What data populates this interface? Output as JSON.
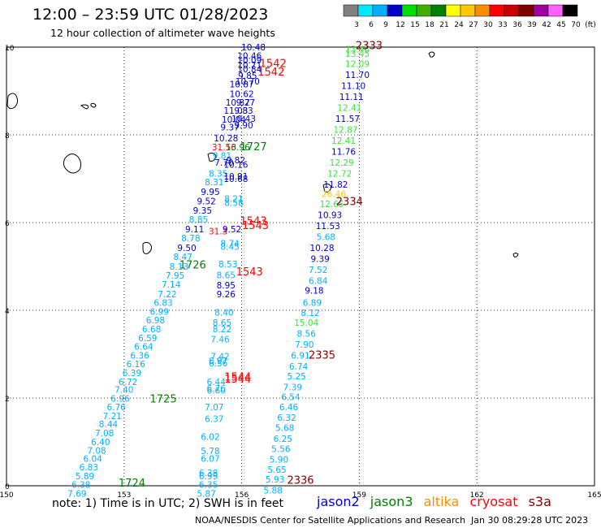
{
  "title": "12:00 – 23:59 UTC 01/28/2023",
  "subtitle": "12 hour collection of altimeter wave heights",
  "scale": {
    "labels": [
      "3",
      "6",
      "9",
      "12",
      "15",
      "18",
      "21",
      "24",
      "27",
      "30",
      "33",
      "36",
      "39",
      "42",
      "45",
      "70",
      "(ft)"
    ],
    "colors": [
      "#808080",
      "#00e8ff",
      "#00b0ff",
      "#0000c8",
      "#00e000",
      "#40b000",
      "#008000",
      "#ffff00",
      "#ffc800",
      "#ff8c00",
      "#ff0000",
      "#c80000",
      "#800000",
      "#a000a0",
      "#ff60ff",
      "#000000"
    ]
  },
  "axes": {
    "x_ticks": [
      "150",
      "153",
      "156",
      "159",
      "162",
      "165"
    ],
    "y_ticks": [
      "0",
      "2",
      "4",
      "6",
      "8",
      "10"
    ]
  },
  "satellites": [
    {
      "name": "jason2",
      "color": "#0000c8"
    },
    {
      "name": "jason3",
      "color": "#008000"
    },
    {
      "name": "altika",
      "color": "#ff8c00"
    },
    {
      "name": "cryosat",
      "color": "#ff0000"
    },
    {
      "name": "s3a",
      "color": "#800000"
    }
  ],
  "note": "note:  1) Time is in UTC;  2) SWH is in feet",
  "credit": "NOAA/NESDIS Center for Satellite Applications and Research",
  "timestamp": "Jan 30 08:29:28 UTC 2023",
  "time_labels": [
    {
      "text": "2333",
      "lon": 159.25,
      "lat": 9.95,
      "color": "#800000"
    },
    {
      "text": "1542",
      "lon": 156.8,
      "lat": 9.55,
      "color": "#ff0000"
    },
    {
      "text": "1542",
      "lon": 156.75,
      "lat": 9.35,
      "color": "#ff0000"
    },
    {
      "text": "1727",
      "lon": 156.3,
      "lat": 7.65,
      "color": "#008000"
    },
    {
      "text": "2334",
      "lon": 158.75,
      "lat": 6.4,
      "color": "#800000"
    },
    {
      "text": "1543",
      "lon": 156.3,
      "lat": 5.95,
      "color": "#ff0000"
    },
    {
      "text": "1543",
      "lon": 156.35,
      "lat": 5.85,
      "color": "#ff0000"
    },
    {
      "text": "1726",
      "lon": 154.75,
      "lat": 4.95,
      "color": "#008000"
    },
    {
      "text": "1543",
      "lon": 156.2,
      "lat": 4.8,
      "color": "#ff0000"
    },
    {
      "text": "2335",
      "lon": 158.05,
      "lat": 2.9,
      "color": "#800000"
    },
    {
      "text": "1544",
      "lon": 155.9,
      "lat": 2.4,
      "color": "#ff0000"
    },
    {
      "text": "1544",
      "lon": 155.9,
      "lat": 2.35,
      "color": "#ff0000"
    },
    {
      "text": "1725",
      "lon": 154.0,
      "lat": 1.9,
      "color": "#008000"
    },
    {
      "text": "2336",
      "lon": 157.5,
      "lat": 0.05,
      "color": "#800000"
    },
    {
      "text": "1724",
      "lon": 153.2,
      "lat": -0.02,
      "color": "#008000"
    }
  ],
  "wave_heights": [
    {
      "text": "10.48",
      "lon": 156.3,
      "lat": 9.93,
      "color": "#0000c8"
    },
    {
      "text": "10.46",
      "lon": 156.2,
      "lat": 9.73,
      "color": "#0000c8"
    },
    {
      "text": "10.09",
      "lon": 156.2,
      "lat": 9.63,
      "color": "#0000c8"
    },
    {
      "text": "10.71",
      "lon": 156.2,
      "lat": 9.52,
      "color": "#0000c8"
    },
    {
      "text": "10.84",
      "lon": 156.2,
      "lat": 9.43,
      "color": "#0000c8"
    },
    {
      "text": "9.85",
      "lon": 156.15,
      "lat": 9.28,
      "color": "#0000c8"
    },
    {
      "text": "10.70",
      "lon": 156.15,
      "lat": 9.15,
      "color": "#0000c8"
    },
    {
      "text": "10.87",
      "lon": 156.0,
      "lat": 9.08,
      "color": "#0000c8"
    },
    {
      "text": "10.62",
      "lon": 156.0,
      "lat": 8.86,
      "color": "#0000c8"
    },
    {
      "text": "10.87",
      "lon": 155.9,
      "lat": 8.67,
      "color": "#0000c8"
    },
    {
      "text": "9.27",
      "lon": 156.1,
      "lat": 8.67,
      "color": "#0000c8"
    },
    {
      "text": "11.03",
      "lon": 155.85,
      "lat": 8.48,
      "color": "#0000c8"
    },
    {
      "text": "9.83",
      "lon": 156.05,
      "lat": 8.48,
      "color": "#0000c8"
    },
    {
      "text": "10.04",
      "lon": 155.8,
      "lat": 8.28,
      "color": "#0000c8"
    },
    {
      "text": "10.43",
      "lon": 156.05,
      "lat": 8.3,
      "color": "#0000c8"
    },
    {
      "text": "9.90",
      "lon": 156.05,
      "lat": 8.15,
      "color": "#0000c8"
    },
    {
      "text": "9.37",
      "lon": 155.7,
      "lat": 8.1,
      "color": "#0000c8"
    },
    {
      "text": "10.28",
      "lon": 155.6,
      "lat": 7.85,
      "color": "#0000c8"
    },
    {
      "text": "31.56",
      "lon": 155.55,
      "lat": 7.65,
      "color": "#ff0000"
    },
    {
      "text": "13.96",
      "lon": 155.9,
      "lat": 7.65,
      "color": "#008000"
    },
    {
      "text": "9.81",
      "lon": 155.5,
      "lat": 7.45,
      "color": "#00b0ff"
    },
    {
      "text": "7.70",
      "lon": 155.55,
      "lat": 7.3,
      "color": "#0000c8"
    },
    {
      "text": "9.82",
      "lon": 155.85,
      "lat": 7.35,
      "color": "#0000c8"
    },
    {
      "text": "10.16",
      "lon": 155.85,
      "lat": 7.25,
      "color": "#0000c8"
    },
    {
      "text": "8.35",
      "lon": 155.4,
      "lat": 7.05,
      "color": "#00b0ff"
    },
    {
      "text": "10.91",
      "lon": 155.85,
      "lat": 6.98,
      "color": "#0000c8"
    },
    {
      "text": "10.68",
      "lon": 155.85,
      "lat": 6.93,
      "color": "#0000c8"
    },
    {
      "text": "8.31",
      "lon": 155.3,
      "lat": 6.85,
      "color": "#00b0ff"
    },
    {
      "text": "9.95",
      "lon": 155.2,
      "lat": 6.63,
      "color": "#0000c8"
    },
    {
      "text": "8.21",
      "lon": 155.8,
      "lat": 6.47,
      "color": "#00b0ff"
    },
    {
      "text": "8.58",
      "lon": 155.8,
      "lat": 6.38,
      "color": "#00b0ff"
    },
    {
      "text": "9.52",
      "lon": 155.1,
      "lat": 6.42,
      "color": "#0000c8"
    },
    {
      "text": "9.35",
      "lon": 155.0,
      "lat": 6.2,
      "color": "#0000c8"
    },
    {
      "text": "8.85",
      "lon": 154.9,
      "lat": 6.0,
      "color": "#00b0ff"
    },
    {
      "text": "9.11",
      "lon": 154.8,
      "lat": 5.78,
      "color": "#0000c8"
    },
    {
      "text": "31.3",
      "lon": 155.4,
      "lat": 5.73,
      "color": "#ff0000"
    },
    {
      "text": "9.52",
      "lon": 155.75,
      "lat": 5.78,
      "color": "#0000c8"
    },
    {
      "text": "8.78",
      "lon": 154.7,
      "lat": 5.57,
      "color": "#00b0ff"
    },
    {
      "text": "8.74",
      "lon": 155.7,
      "lat": 5.45,
      "color": "#00b0ff"
    },
    {
      "text": "8.45",
      "lon": 155.7,
      "lat": 5.38,
      "color": "#00b0ff"
    },
    {
      "text": "9.50",
      "lon": 154.6,
      "lat": 5.35,
      "color": "#0000c8"
    },
    {
      "text": "8.47",
      "lon": 154.5,
      "lat": 5.15,
      "color": "#00b0ff"
    },
    {
      "text": "8.13",
      "lon": 154.4,
      "lat": 4.93,
      "color": "#00b0ff"
    },
    {
      "text": "8.53",
      "lon": 155.65,
      "lat": 4.98,
      "color": "#00b0ff"
    },
    {
      "text": "7.95",
      "lon": 154.3,
      "lat": 4.72,
      "color": "#00b0ff"
    },
    {
      "text": "8.65",
      "lon": 155.6,
      "lat": 4.73,
      "color": "#00b0ff"
    },
    {
      "text": "7.14",
      "lon": 154.2,
      "lat": 4.52,
      "color": "#00b0ff"
    },
    {
      "text": "8.95",
      "lon": 155.6,
      "lat": 4.5,
      "color": "#0000c8"
    },
    {
      "text": "9.26",
      "lon": 155.6,
      "lat": 4.3,
      "color": "#0000c8"
    },
    {
      "text": "7.22",
      "lon": 154.1,
      "lat": 4.3,
      "color": "#00b0ff"
    },
    {
      "text": "6.83",
      "lon": 154.0,
      "lat": 4.1,
      "color": "#00b0ff"
    },
    {
      "text": "6.99",
      "lon": 153.9,
      "lat": 3.9,
      "color": "#00b0ff"
    },
    {
      "text": "8.40",
      "lon": 155.55,
      "lat": 3.88,
      "color": "#00b0ff"
    },
    {
      "text": "6.98",
      "lon": 153.8,
      "lat": 3.7,
      "color": "#00b0ff"
    },
    {
      "text": "8.65",
      "lon": 155.5,
      "lat": 3.65,
      "color": "#00b0ff"
    },
    {
      "text": "8.22",
      "lon": 155.5,
      "lat": 3.5,
      "color": "#00b0ff"
    },
    {
      "text": "6.68",
      "lon": 153.7,
      "lat": 3.5,
      "color": "#00b0ff"
    },
    {
      "text": "6.59",
      "lon": 153.6,
      "lat": 3.3,
      "color": "#00b0ff"
    },
    {
      "text": "7.46",
      "lon": 155.45,
      "lat": 3.27,
      "color": "#00b0ff"
    },
    {
      "text": "6.64",
      "lon": 153.5,
      "lat": 3.1,
      "color": "#00b0ff"
    },
    {
      "text": "7.42",
      "lon": 155.45,
      "lat": 2.88,
      "color": "#00b0ff"
    },
    {
      "text": "6.36",
      "lon": 153.4,
      "lat": 2.9,
      "color": "#00b0ff"
    },
    {
      "text": "6.97",
      "lon": 155.4,
      "lat": 2.78,
      "color": "#00b0ff"
    },
    {
      "text": "6.56",
      "lon": 155.4,
      "lat": 2.72,
      "color": "#00b0ff"
    },
    {
      "text": "6.16",
      "lon": 153.3,
      "lat": 2.7,
      "color": "#00b0ff"
    },
    {
      "text": "6.39",
      "lon": 153.2,
      "lat": 2.5,
      "color": "#00b0ff"
    },
    {
      "text": "6.72",
      "lon": 153.1,
      "lat": 2.3,
      "color": "#00b0ff"
    },
    {
      "text": "6.44",
      "lon": 155.35,
      "lat": 2.3,
      "color": "#00b0ff"
    },
    {
      "text": "7.40",
      "lon": 153.0,
      "lat": 2.12,
      "color": "#00b0ff"
    },
    {
      "text": "6.76",
      "lon": 155.35,
      "lat": 2.15,
      "color": "#00b0ff"
    },
    {
      "text": "6.60",
      "lon": 155.35,
      "lat": 2.1,
      "color": "#00b0ff"
    },
    {
      "text": "6.96",
      "lon": 152.9,
      "lat": 1.92,
      "color": "#00b0ff"
    },
    {
      "text": "6.76",
      "lon": 152.8,
      "lat": 1.72,
      "color": "#00b0ff"
    },
    {
      "text": "7.07",
      "lon": 155.3,
      "lat": 1.72,
      "color": "#00b0ff"
    },
    {
      "text": "7.21",
      "lon": 152.7,
      "lat": 1.52,
      "color": "#00b0ff"
    },
    {
      "text": "6.37",
      "lon": 155.3,
      "lat": 1.45,
      "color": "#00b0ff"
    },
    {
      "text": "8.44",
      "lon": 152.6,
      "lat": 1.33,
      "color": "#00b0ff"
    },
    {
      "text": "7.08",
      "lon": 152.5,
      "lat": 1.13,
      "color": "#00b0ff"
    },
    {
      "text": "6.02",
      "lon": 155.2,
      "lat": 1.05,
      "color": "#00b0ff"
    },
    {
      "text": "6.40",
      "lon": 152.4,
      "lat": 0.93,
      "color": "#00b0ff"
    },
    {
      "text": "7.08",
      "lon": 152.3,
      "lat": 0.73,
      "color": "#00b0ff"
    },
    {
      "text": "5.78",
      "lon": 155.2,
      "lat": 0.72,
      "color": "#00b0ff"
    },
    {
      "text": "6.04",
      "lon": 152.2,
      "lat": 0.55,
      "color": "#00b0ff"
    },
    {
      "text": "6.07",
      "lon": 155.2,
      "lat": 0.55,
      "color": "#00b0ff"
    },
    {
      "text": "6.83",
      "lon": 152.1,
      "lat": 0.35,
      "color": "#00b0ff"
    },
    {
      "text": "5.89",
      "lon": 152.0,
      "lat": 0.15,
      "color": "#00b0ff"
    },
    {
      "text": "6.38",
      "lon": 155.15,
      "lat": 0.22,
      "color": "#00b0ff"
    },
    {
      "text": "6.99",
      "lon": 155.15,
      "lat": 0.15,
      "color": "#00b0ff"
    },
    {
      "text": "6.38",
      "lon": 151.9,
      "lat": -0.05,
      "color": "#00b0ff"
    },
    {
      "text": "6.35",
      "lon": 155.15,
      "lat": -0.05,
      "color": "#00b0ff"
    },
    {
      "text": "7.69",
      "lon": 151.8,
      "lat": -0.25,
      "color": "#00b0ff"
    },
    {
      "text": "5.87",
      "lon": 155.1,
      "lat": -0.25,
      "color": "#00b0ff"
    },
    {
      "text": "13.46",
      "lon": 158.95,
      "lat": 9.88,
      "color": "#40e040"
    },
    {
      "text": "13.45",
      "lon": 158.95,
      "lat": 9.78,
      "color": "#40e040"
    },
    {
      "text": "12.09",
      "lon": 158.95,
      "lat": 9.55,
      "color": "#40e040"
    },
    {
      "text": "11.70",
      "lon": 158.95,
      "lat": 9.3,
      "color": "#0000c8"
    },
    {
      "text": "11.10",
      "lon": 158.85,
      "lat": 9.05,
      "color": "#0000c8"
    },
    {
      "text": "11.11",
      "lon": 158.8,
      "lat": 8.8,
      "color": "#0000c8"
    },
    {
      "text": "12.41",
      "lon": 158.75,
      "lat": 8.55,
      "color": "#40e040"
    },
    {
      "text": "11.57",
      "lon": 158.7,
      "lat": 8.3,
      "color": "#0000c8"
    },
    {
      "text": "12.87",
      "lon": 158.65,
      "lat": 8.05,
      "color": "#40e040"
    },
    {
      "text": "12.41",
      "lon": 158.6,
      "lat": 7.8,
      "color": "#40e040"
    },
    {
      "text": "11.76",
      "lon": 158.6,
      "lat": 7.55,
      "color": "#0000c8"
    },
    {
      "text": "12.29",
      "lon": 158.55,
      "lat": 7.3,
      "color": "#40e040"
    },
    {
      "text": "12.72",
      "lon": 158.5,
      "lat": 7.05,
      "color": "#40e040"
    },
    {
      "text": "11.82",
      "lon": 158.4,
      "lat": 6.8,
      "color": "#0000c8"
    },
    {
      "text": "26.46",
      "lon": 158.35,
      "lat": 6.58,
      "color": "#ffc800"
    },
    {
      "text": "12.65",
      "lon": 158.3,
      "lat": 6.35,
      "color": "#40e040"
    },
    {
      "text": "10.93",
      "lon": 158.25,
      "lat": 6.1,
      "color": "#0000c8"
    },
    {
      "text": "11.53",
      "lon": 158.2,
      "lat": 5.85,
      "color": "#0000c8"
    },
    {
      "text": "5.68",
      "lon": 158.15,
      "lat": 5.6,
      "color": "#00b0ff"
    },
    {
      "text": "10.28",
      "lon": 158.05,
      "lat": 5.35,
      "color": "#0000c8"
    },
    {
      "text": "9.39",
      "lon": 158.0,
      "lat": 5.1,
      "color": "#0000c8"
    },
    {
      "text": "7.52",
      "lon": 157.95,
      "lat": 4.85,
      "color": "#00b0ff"
    },
    {
      "text": "6.84",
      "lon": 157.95,
      "lat": 4.6,
      "color": "#00b0ff"
    },
    {
      "text": "9.18",
      "lon": 157.85,
      "lat": 4.38,
      "color": "#0000c8"
    },
    {
      "text": "6.89",
      "lon": 157.8,
      "lat": 4.1,
      "color": "#00b0ff"
    },
    {
      "text": "8.12",
      "lon": 157.75,
      "lat": 3.87,
      "color": "#00b0ff"
    },
    {
      "text": "15.04",
      "lon": 157.65,
      "lat": 3.65,
      "color": "#40e040"
    },
    {
      "text": "8.56",
      "lon": 157.65,
      "lat": 3.4,
      "color": "#00b0ff"
    },
    {
      "text": "7.90",
      "lon": 157.6,
      "lat": 3.15,
      "color": "#00b0ff"
    },
    {
      "text": "6.91",
      "lon": 157.5,
      "lat": 2.9,
      "color": "#00b0ff"
    },
    {
      "text": "6.74",
      "lon": 157.45,
      "lat": 2.65,
      "color": "#00b0ff"
    },
    {
      "text": "5.25",
      "lon": 157.4,
      "lat": 2.43,
      "color": "#00b0ff"
    },
    {
      "text": "7.39",
      "lon": 157.3,
      "lat": 2.18,
      "color": "#00b0ff"
    },
    {
      "text": "6.54",
      "lon": 157.25,
      "lat": 1.95,
      "color": "#00b0ff"
    },
    {
      "text": "6.46",
      "lon": 157.2,
      "lat": 1.72,
      "color": "#00b0ff"
    },
    {
      "text": "6.32",
      "lon": 157.15,
      "lat": 1.48,
      "color": "#00b0ff"
    },
    {
      "text": "5.68",
      "lon": 157.1,
      "lat": 1.25,
      "color": "#00b0ff"
    },
    {
      "text": "6.25",
      "lon": 157.05,
      "lat": 1.0,
      "color": "#00b0ff"
    },
    {
      "text": "5.56",
      "lon": 157.0,
      "lat": 0.77,
      "color": "#00b0ff"
    },
    {
      "text": "5.90",
      "lon": 156.95,
      "lat": 0.53,
      "color": "#00b0ff"
    },
    {
      "text": "5.65",
      "lon": 156.9,
      "lat": 0.3,
      "color": "#00b0ff"
    },
    {
      "text": "5.93",
      "lon": 156.85,
      "lat": 0.07,
      "color": "#00b0ff"
    },
    {
      "text": "5.88",
      "lon": 156.8,
      "lat": -0.18,
      "color": "#00b0ff"
    }
  ]
}
